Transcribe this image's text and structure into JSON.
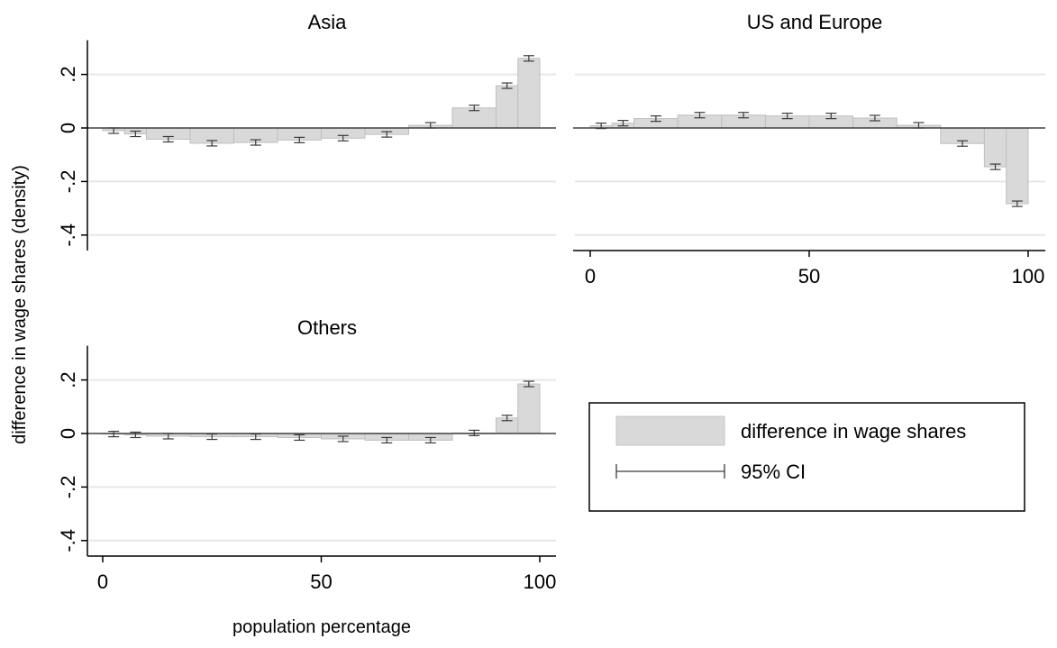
{
  "chart_data": {
    "type": "bar",
    "ylabel": "difference in wage shares (density)",
    "xlabel": "population percentage",
    "x_ticks": [
      0,
      50,
      100
    ],
    "x_tick_labels": [
      "0",
      "50",
      "100"
    ],
    "y_ticks": [
      0.2,
      0,
      -0.2,
      -0.4
    ],
    "y_tick_labels": [
      ".2",
      "0",
      "-.2",
      "-.4"
    ],
    "xlim": [
      0,
      100
    ],
    "ylim": [
      -0.4,
      0.2
    ],
    "legend": {
      "position": "right",
      "entries": [
        {
          "label": "difference in wage shares",
          "kind": "bar"
        },
        {
          "label": "95% CI",
          "kind": "ci"
        }
      ]
    },
    "colors": {
      "bar_fill": "#d9d9d9",
      "bar_edge": "#bfbfbf",
      "ci": "#3a3a3a",
      "zero_line": "#404040",
      "grid": "#e6e6e6"
    },
    "panels": [
      {
        "title": "Asia",
        "show_x_axis": false,
        "bins": [
          {
            "x0": 0,
            "x1": 5,
            "y": -0.01
          },
          {
            "x0": 5,
            "x1": 10,
            "y": -0.022
          },
          {
            "x0": 10,
            "x1": 20,
            "y": -0.042
          },
          {
            "x0": 20,
            "x1": 30,
            "y": -0.057
          },
          {
            "x0": 30,
            "x1": 40,
            "y": -0.054
          },
          {
            "x0": 40,
            "x1": 50,
            "y": -0.045
          },
          {
            "x0": 50,
            "x1": 60,
            "y": -0.038
          },
          {
            "x0": 60,
            "x1": 70,
            "y": -0.024
          },
          {
            "x0": 70,
            "x1": 80,
            "y": 0.01
          },
          {
            "x0": 80,
            "x1": 90,
            "y": 0.075
          },
          {
            "x0": 90,
            "x1": 95,
            "y": 0.158
          },
          {
            "x0": 95,
            "x1": 100,
            "y": 0.26
          }
        ]
      },
      {
        "title": "US and Europe",
        "show_x_axis": true,
        "bins": [
          {
            "x0": 0,
            "x1": 5,
            "y": 0.008
          },
          {
            "x0": 5,
            "x1": 10,
            "y": 0.018
          },
          {
            "x0": 10,
            "x1": 20,
            "y": 0.035
          },
          {
            "x0": 20,
            "x1": 30,
            "y": 0.048
          },
          {
            "x0": 30,
            "x1": 40,
            "y": 0.048
          },
          {
            "x0": 40,
            "x1": 50,
            "y": 0.045
          },
          {
            "x0": 50,
            "x1": 60,
            "y": 0.045
          },
          {
            "x0": 60,
            "x1": 70,
            "y": 0.037
          },
          {
            "x0": 70,
            "x1": 80,
            "y": 0.01
          },
          {
            "x0": 80,
            "x1": 90,
            "y": -0.058
          },
          {
            "x0": 90,
            "x1": 95,
            "y": -0.145
          },
          {
            "x0": 95,
            "x1": 100,
            "y": -0.283
          }
        ]
      },
      {
        "title": "Others",
        "show_x_axis": true,
        "bins": [
          {
            "x0": 0,
            "x1": 5,
            "y": -0.002
          },
          {
            "x0": 5,
            "x1": 10,
            "y": -0.005
          },
          {
            "x0": 10,
            "x1": 20,
            "y": -0.01
          },
          {
            "x0": 20,
            "x1": 30,
            "y": -0.012
          },
          {
            "x0": 30,
            "x1": 40,
            "y": -0.012
          },
          {
            "x0": 40,
            "x1": 50,
            "y": -0.015
          },
          {
            "x0": 50,
            "x1": 60,
            "y": -0.02
          },
          {
            "x0": 60,
            "x1": 70,
            "y": -0.025
          },
          {
            "x0": 70,
            "x1": 80,
            "y": -0.025
          },
          {
            "x0": 80,
            "x1": 90,
            "y": 0.002
          },
          {
            "x0": 90,
            "x1": 95,
            "y": 0.058
          },
          {
            "x0": 95,
            "x1": 100,
            "y": 0.185
          }
        ]
      }
    ]
  }
}
